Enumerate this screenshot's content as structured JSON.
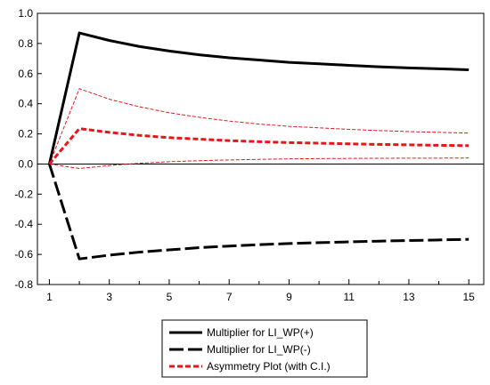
{
  "chart_data": {
    "type": "line",
    "x": [
      1,
      2,
      3,
      4,
      5,
      6,
      7,
      8,
      9,
      10,
      11,
      12,
      13,
      14,
      15
    ],
    "x_ticks": [
      1,
      3,
      5,
      7,
      9,
      11,
      13,
      15
    ],
    "y_ticks": [
      -0.8,
      -0.6,
      -0.4,
      -0.2,
      0.0,
      0.2,
      0.4,
      0.6,
      0.8,
      1.0
    ],
    "xlim": [
      0.6,
      15.5
    ],
    "ylim": [
      -0.8,
      1.0
    ],
    "zero_line": true,
    "legend_position": "bottom-center",
    "series": [
      {
        "name": "Multiplier for LI_WP(+)",
        "color": "#000000",
        "style": "solid",
        "values": [
          0.0,
          0.87,
          0.82,
          0.78,
          0.75,
          0.725,
          0.705,
          0.69,
          0.675,
          0.665,
          0.655,
          0.645,
          0.638,
          0.632,
          0.625
        ]
      },
      {
        "name": "Multiplier for LI_WP(-)",
        "color": "#000000",
        "style": "longdash",
        "values": [
          0.0,
          -0.63,
          -0.605,
          -0.585,
          -0.57,
          -0.555,
          -0.545,
          -0.535,
          -0.528,
          -0.522,
          -0.517,
          -0.512,
          -0.508,
          -0.504,
          -0.5
        ]
      },
      {
        "name": "Asymmetry Plot (with C.I.)",
        "color": "#e8161b",
        "style": "dash",
        "values": [
          0.0,
          0.235,
          0.21,
          0.19,
          0.175,
          0.165,
          0.155,
          0.148,
          0.142,
          0.138,
          0.134,
          0.13,
          0.127,
          0.124,
          0.122
        ]
      }
    ],
    "confidence_band": {
      "color": "#e8161b",
      "upper": [
        0.0,
        0.5,
        0.43,
        0.38,
        0.34,
        0.31,
        0.285,
        0.265,
        0.25,
        0.24,
        0.23,
        0.222,
        0.215,
        0.21,
        0.205
      ],
      "lower": [
        0.0,
        -0.03,
        -0.01,
        0.005,
        0.015,
        0.022,
        0.027,
        0.031,
        0.034,
        0.036,
        0.037,
        0.038,
        0.039,
        0.039,
        0.04
      ]
    }
  }
}
